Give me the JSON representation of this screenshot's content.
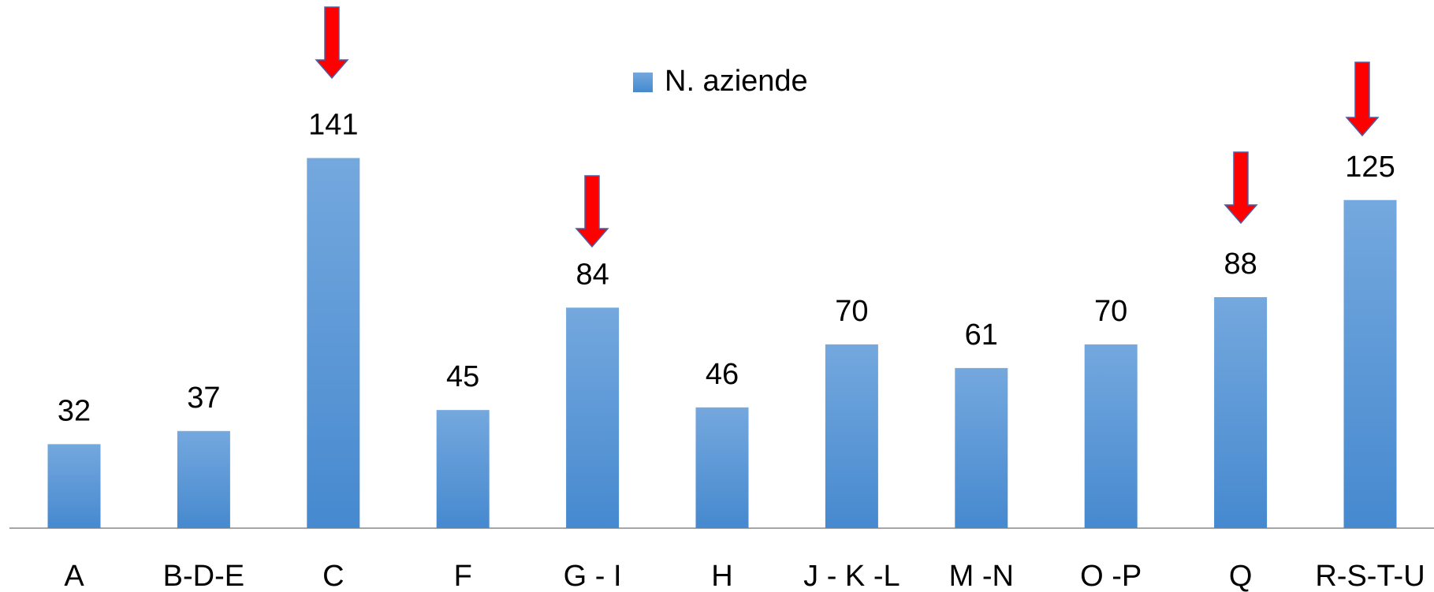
{
  "chart_data": {
    "type": "bar",
    "categories": [
      "A",
      "B-D-E",
      "C",
      "F",
      "G - I",
      "H",
      "J - K -L",
      "M -N",
      "O -P",
      "Q",
      "R-S-T-U"
    ],
    "series": [
      {
        "name": "N. aziende",
        "color": "#5b9bd5",
        "values": [
          32,
          37,
          141,
          45,
          84,
          46,
          70,
          61,
          70,
          88,
          125
        ]
      }
    ]
  }
}
